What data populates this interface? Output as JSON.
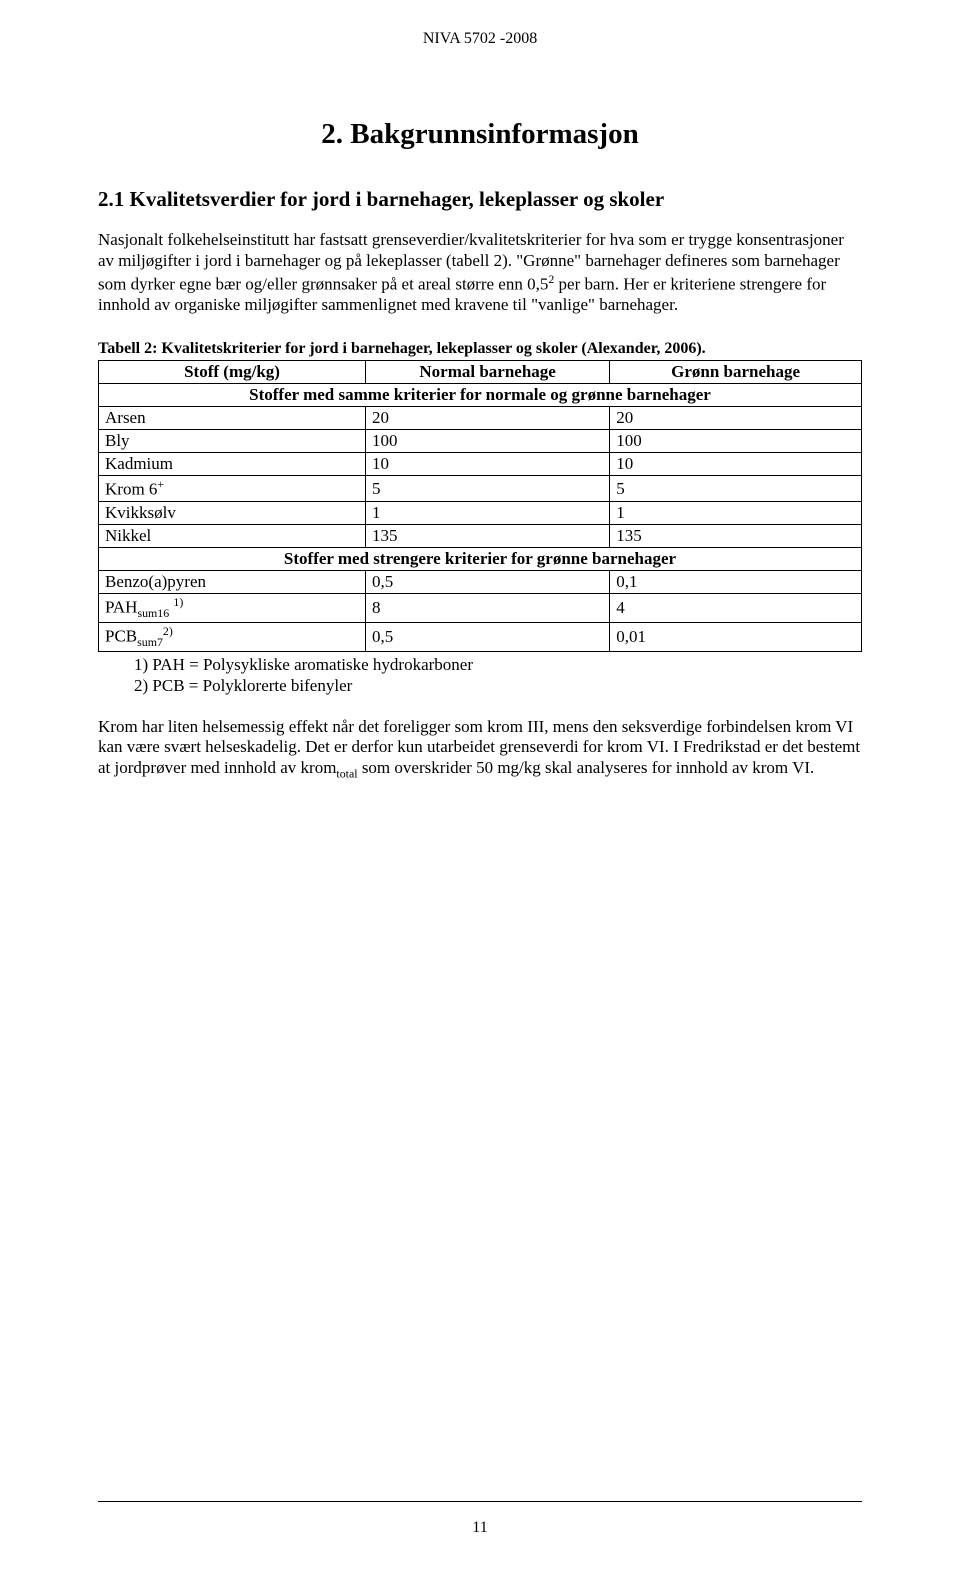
{
  "header": {
    "document_id": "NIVA 5702 -2008"
  },
  "section": {
    "title": "2. Bakgrunnsinformasjon",
    "subsection_title": "2.1 Kvalitetsverdier for jord i barnehager, lekeplasser og skoler",
    "paragraph1": "Nasjonalt folkehelseinstitutt har fastsatt grenseverdier/kvalitetskriterier for hva som er trygge konsentrasjoner av miljøgifter i jord i barnehager og på lekeplasser (tabell 2). \"Grønne\" barnehager defineres som barnehager som dyrker egne bær og/eller grønnsaker på et areal større enn 0,5² per barn. Her er kriteriene strengere for innhold av organiske miljøgifter sammenlignet med kravene til \"vanlige\" barnehager."
  },
  "table": {
    "caption": "Tabell 2: Kvalitetskriterier for jord i barnehager, lekeplasser og skoler (Alexander, 2006).",
    "header": {
      "col1": "Stoff (mg/kg)",
      "col2": "Normal barnehage",
      "col3": "Grønn barnehage"
    },
    "subheader1": "Stoffer med samme kriterier for normale og grønne barnehager",
    "subheader2": "Stoffer med strengere kriterier for grønne barnehager",
    "rows_group1": [
      {
        "name": "Arsen",
        "normal": "20",
        "gronn": "20"
      },
      {
        "name": "Bly",
        "normal": "100",
        "gronn": "100"
      },
      {
        "name": "Kadmium",
        "normal": "10",
        "gronn": "10"
      },
      {
        "name": "Krom 6⁺",
        "normal": "5",
        "gronn": "5"
      },
      {
        "name": "Kvikksølv",
        "normal": "1",
        "gronn": "1"
      },
      {
        "name": "Nikkel",
        "normal": "135",
        "gronn": "135"
      }
    ],
    "rows_group2": [
      {
        "name": "Benzo(a)pyren",
        "normal": "0,5",
        "gronn": "0,1"
      },
      {
        "name": "PAHsum16 ¹⁾",
        "normal": "8",
        "gronn": "4"
      },
      {
        "name": "PCBsum7²⁾",
        "normal": "0,5",
        "gronn": "0,01"
      }
    ]
  },
  "footnotes": {
    "note1": "1)   PAH = Polysykliske aromatiske hydrokarboner",
    "note2": "2)   PCB = Polyklorerte bifenyler"
  },
  "closing": {
    "paragraph": "Krom har liten helsemessig effekt når det foreligger som krom III, mens den seksverdige forbindelsen krom VI kan være svært helseskadelig. Det er derfor kun utarbeidet grenseverdi for krom VI. I Fredrikstad er det bestemt at jordprøver med innhold av kromtotal som overskrider 50 mg/kg skal analyseres for innhold av krom VI."
  },
  "page_number": "11"
}
